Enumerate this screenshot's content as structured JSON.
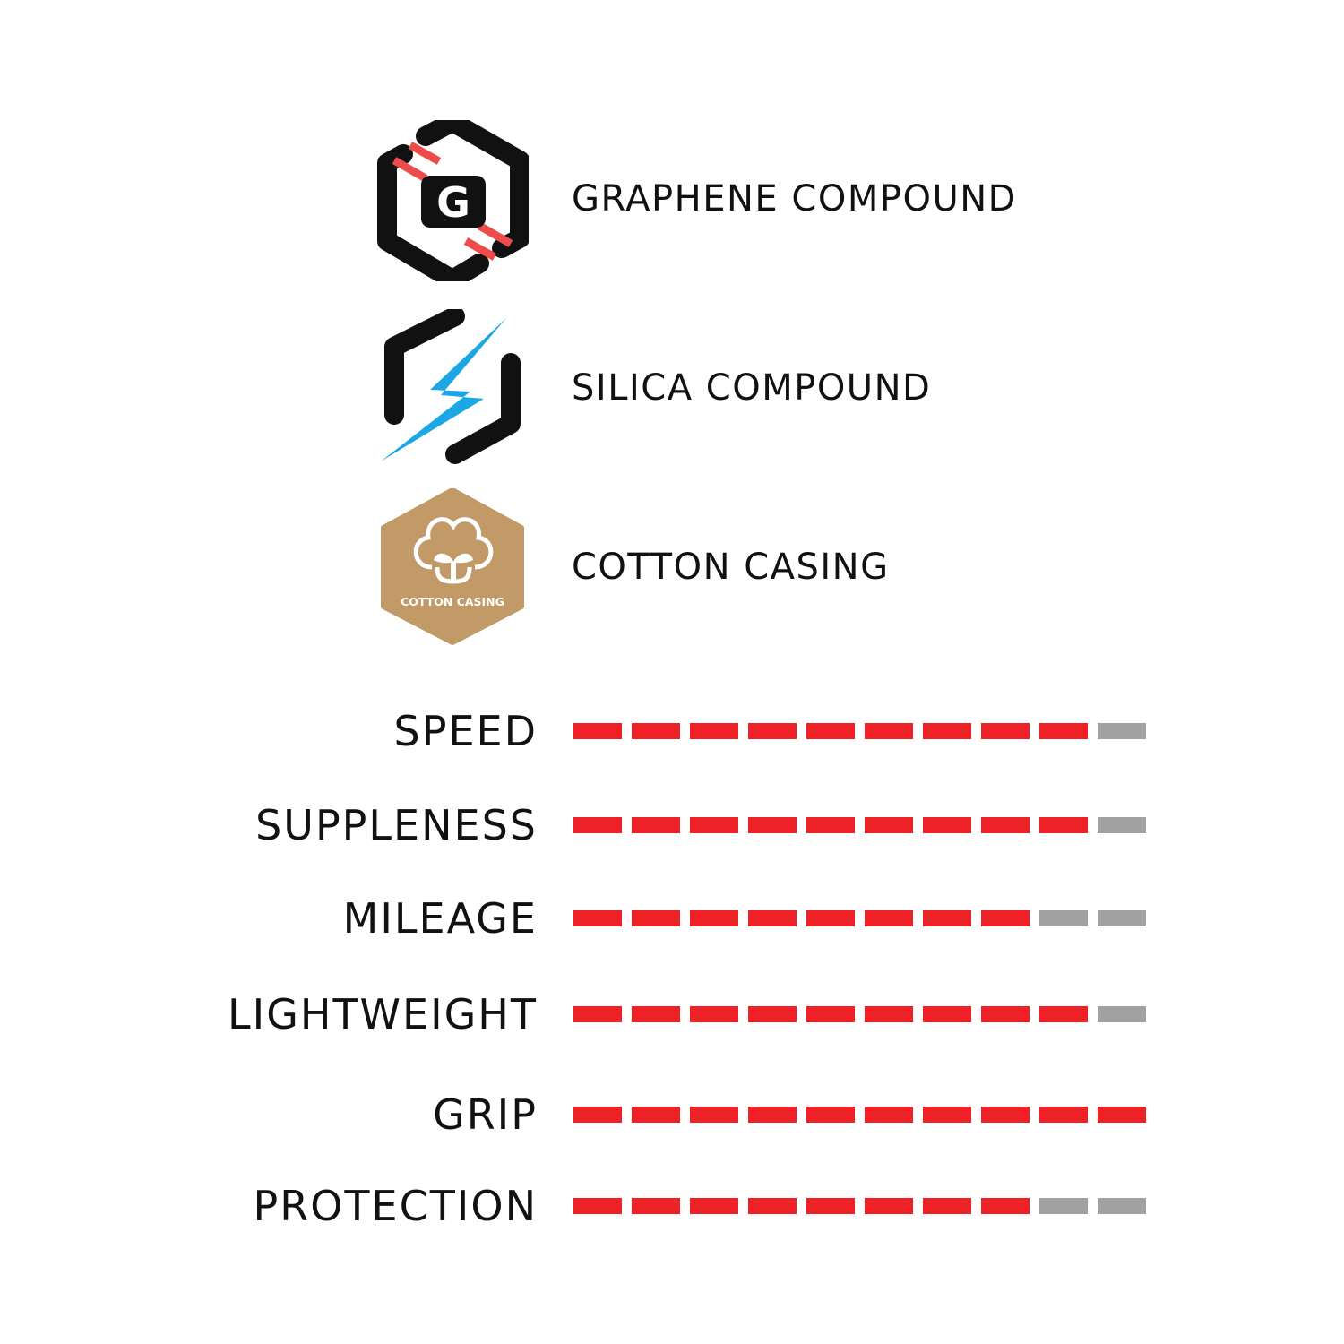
{
  "features": [
    {
      "icon": "graphene-compound-icon",
      "label": "GRAPHENE COMPOUND",
      "badge_text": "G"
    },
    {
      "icon": "silica-compound-icon",
      "label": "SILICA COMPOUND"
    },
    {
      "icon": "cotton-casing-icon",
      "label": "COTTON CASING",
      "badge_text": "COTTON CASING"
    }
  ],
  "ratings": {
    "max": 10,
    "items": [
      {
        "name": "SPEED",
        "value": 9
      },
      {
        "name": "SUPPLENESS",
        "value": 9
      },
      {
        "name": "MILEAGE",
        "value": 8
      },
      {
        "name": "LIGHTWEIGHT",
        "value": 9
      },
      {
        "name": "GRIP",
        "value": 10
      },
      {
        "name": "PROTECTION",
        "value": 8
      }
    ]
  },
  "colors": {
    "filled": "#ee2127",
    "empty": "#a1a1a1",
    "graphene_accent": "#ee4b4b",
    "silica_accent": "#1ba7e6",
    "cotton_badge": "#c29a67",
    "icon_dark": "#111111"
  }
}
